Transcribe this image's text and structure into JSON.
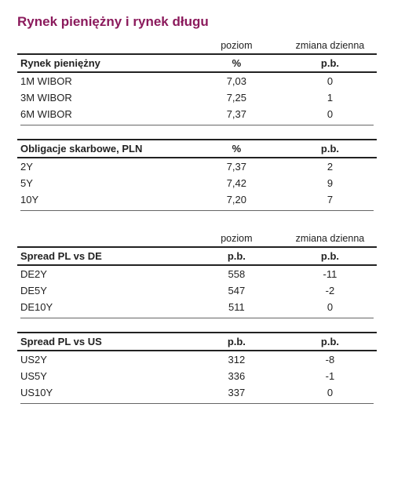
{
  "title": "Rynek pieniężny i rynek długu",
  "columns_top": {
    "c1": "poziom",
    "c2": "zmiana dzienna"
  },
  "sections": [
    {
      "header": {
        "label": "Rynek pieniężny",
        "u1": "%",
        "u2": "p.b."
      },
      "rows": [
        {
          "label": "1M WIBOR",
          "v1": "7,03",
          "v2": "0"
        },
        {
          "label": "3M WIBOR",
          "v1": "7,25",
          "v2": "1"
        },
        {
          "label": "6M WIBOR",
          "v1": "7,37",
          "v2": "0"
        }
      ]
    },
    {
      "header": {
        "label": "Obligacje skarbowe, PLN",
        "u1": "%",
        "u2": "p.b."
      },
      "rows": [
        {
          "label": "2Y",
          "v1": "7,37",
          "v2": "2"
        },
        {
          "label": "5Y",
          "v1": "7,42",
          "v2": "9"
        },
        {
          "label": "10Y",
          "v1": "7,20",
          "v2": "7"
        }
      ]
    }
  ],
  "columns_bottom": {
    "c1": "poziom",
    "c2": "zmiana dzienna"
  },
  "sections2": [
    {
      "header": {
        "label": "Spread PL vs DE",
        "u1": "p.b.",
        "u2": "p.b."
      },
      "rows": [
        {
          "label": "DE2Y",
          "v1": "558",
          "v2": "-11"
        },
        {
          "label": "DE5Y",
          "v1": "547",
          "v2": "-2"
        },
        {
          "label": "DE10Y",
          "v1": "511",
          "v2": "0"
        }
      ]
    },
    {
      "header": {
        "label": "Spread PL vs US",
        "u1": "p.b.",
        "u2": "p.b."
      },
      "rows": [
        {
          "label": "US2Y",
          "v1": "312",
          "v2": "-8"
        },
        {
          "label": "US5Y",
          "v1": "336",
          "v2": "-1"
        },
        {
          "label": "US10Y",
          "v1": "337",
          "v2": "0"
        }
      ]
    }
  ],
  "style": {
    "title_color": "#8b1a5c",
    "rule_color": "#222222",
    "font_family": "Arial",
    "title_fontsize": 17,
    "body_fontsize": 13
  }
}
